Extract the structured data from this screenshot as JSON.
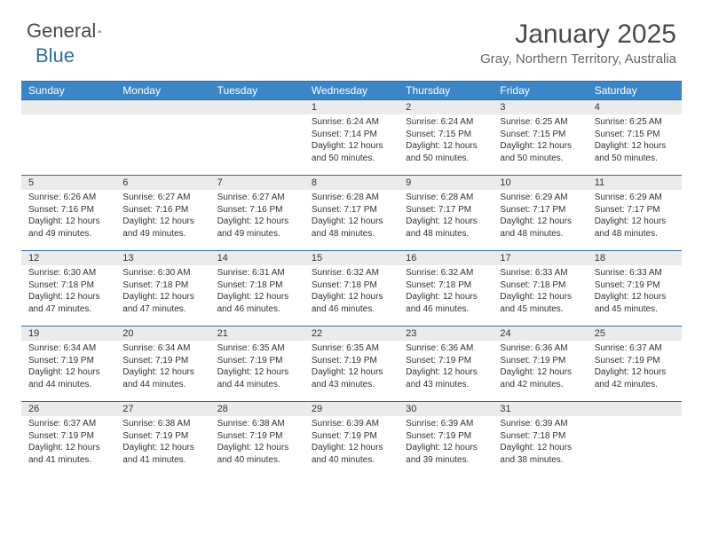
{
  "logo": {
    "text_general": "General",
    "text_blue": "Blue"
  },
  "title": "January 2025",
  "location": "Gray, Northern Territory, Australia",
  "day_names": [
    "Sunday",
    "Monday",
    "Tuesday",
    "Wednesday",
    "Thursday",
    "Friday",
    "Saturday"
  ],
  "colors": {
    "header_bg": "#3b86c7",
    "header_text": "#ffffff",
    "border": "#2e6da4",
    "daynum_bg": "#ebebeb",
    "text": "#333333",
    "logo_gray": "#4a4a4a",
    "logo_blue": "#2e6da4"
  },
  "weeks": [
    [
      null,
      null,
      null,
      {
        "n": "1",
        "sr": "Sunrise: 6:24 AM",
        "ss": "Sunset: 7:14 PM",
        "d1": "Daylight: 12 hours",
        "d2": "and 50 minutes."
      },
      {
        "n": "2",
        "sr": "Sunrise: 6:24 AM",
        "ss": "Sunset: 7:15 PM",
        "d1": "Daylight: 12 hours",
        "d2": "and 50 minutes."
      },
      {
        "n": "3",
        "sr": "Sunrise: 6:25 AM",
        "ss": "Sunset: 7:15 PM",
        "d1": "Daylight: 12 hours",
        "d2": "and 50 minutes."
      },
      {
        "n": "4",
        "sr": "Sunrise: 6:25 AM",
        "ss": "Sunset: 7:15 PM",
        "d1": "Daylight: 12 hours",
        "d2": "and 50 minutes."
      }
    ],
    [
      {
        "n": "5",
        "sr": "Sunrise: 6:26 AM",
        "ss": "Sunset: 7:16 PM",
        "d1": "Daylight: 12 hours",
        "d2": "and 49 minutes."
      },
      {
        "n": "6",
        "sr": "Sunrise: 6:27 AM",
        "ss": "Sunset: 7:16 PM",
        "d1": "Daylight: 12 hours",
        "d2": "and 49 minutes."
      },
      {
        "n": "7",
        "sr": "Sunrise: 6:27 AM",
        "ss": "Sunset: 7:16 PM",
        "d1": "Daylight: 12 hours",
        "d2": "and 49 minutes."
      },
      {
        "n": "8",
        "sr": "Sunrise: 6:28 AM",
        "ss": "Sunset: 7:17 PM",
        "d1": "Daylight: 12 hours",
        "d2": "and 48 minutes."
      },
      {
        "n": "9",
        "sr": "Sunrise: 6:28 AM",
        "ss": "Sunset: 7:17 PM",
        "d1": "Daylight: 12 hours",
        "d2": "and 48 minutes."
      },
      {
        "n": "10",
        "sr": "Sunrise: 6:29 AM",
        "ss": "Sunset: 7:17 PM",
        "d1": "Daylight: 12 hours",
        "d2": "and 48 minutes."
      },
      {
        "n": "11",
        "sr": "Sunrise: 6:29 AM",
        "ss": "Sunset: 7:17 PM",
        "d1": "Daylight: 12 hours",
        "d2": "and 48 minutes."
      }
    ],
    [
      {
        "n": "12",
        "sr": "Sunrise: 6:30 AM",
        "ss": "Sunset: 7:18 PM",
        "d1": "Daylight: 12 hours",
        "d2": "and 47 minutes."
      },
      {
        "n": "13",
        "sr": "Sunrise: 6:30 AM",
        "ss": "Sunset: 7:18 PM",
        "d1": "Daylight: 12 hours",
        "d2": "and 47 minutes."
      },
      {
        "n": "14",
        "sr": "Sunrise: 6:31 AM",
        "ss": "Sunset: 7:18 PM",
        "d1": "Daylight: 12 hours",
        "d2": "and 46 minutes."
      },
      {
        "n": "15",
        "sr": "Sunrise: 6:32 AM",
        "ss": "Sunset: 7:18 PM",
        "d1": "Daylight: 12 hours",
        "d2": "and 46 minutes."
      },
      {
        "n": "16",
        "sr": "Sunrise: 6:32 AM",
        "ss": "Sunset: 7:18 PM",
        "d1": "Daylight: 12 hours",
        "d2": "and 46 minutes."
      },
      {
        "n": "17",
        "sr": "Sunrise: 6:33 AM",
        "ss": "Sunset: 7:18 PM",
        "d1": "Daylight: 12 hours",
        "d2": "and 45 minutes."
      },
      {
        "n": "18",
        "sr": "Sunrise: 6:33 AM",
        "ss": "Sunset: 7:19 PM",
        "d1": "Daylight: 12 hours",
        "d2": "and 45 minutes."
      }
    ],
    [
      {
        "n": "19",
        "sr": "Sunrise: 6:34 AM",
        "ss": "Sunset: 7:19 PM",
        "d1": "Daylight: 12 hours",
        "d2": "and 44 minutes."
      },
      {
        "n": "20",
        "sr": "Sunrise: 6:34 AM",
        "ss": "Sunset: 7:19 PM",
        "d1": "Daylight: 12 hours",
        "d2": "and 44 minutes."
      },
      {
        "n": "21",
        "sr": "Sunrise: 6:35 AM",
        "ss": "Sunset: 7:19 PM",
        "d1": "Daylight: 12 hours",
        "d2": "and 44 minutes."
      },
      {
        "n": "22",
        "sr": "Sunrise: 6:35 AM",
        "ss": "Sunset: 7:19 PM",
        "d1": "Daylight: 12 hours",
        "d2": "and 43 minutes."
      },
      {
        "n": "23",
        "sr": "Sunrise: 6:36 AM",
        "ss": "Sunset: 7:19 PM",
        "d1": "Daylight: 12 hours",
        "d2": "and 43 minutes."
      },
      {
        "n": "24",
        "sr": "Sunrise: 6:36 AM",
        "ss": "Sunset: 7:19 PM",
        "d1": "Daylight: 12 hours",
        "d2": "and 42 minutes."
      },
      {
        "n": "25",
        "sr": "Sunrise: 6:37 AM",
        "ss": "Sunset: 7:19 PM",
        "d1": "Daylight: 12 hours",
        "d2": "and 42 minutes."
      }
    ],
    [
      {
        "n": "26",
        "sr": "Sunrise: 6:37 AM",
        "ss": "Sunset: 7:19 PM",
        "d1": "Daylight: 12 hours",
        "d2": "and 41 minutes."
      },
      {
        "n": "27",
        "sr": "Sunrise: 6:38 AM",
        "ss": "Sunset: 7:19 PM",
        "d1": "Daylight: 12 hours",
        "d2": "and 41 minutes."
      },
      {
        "n": "28",
        "sr": "Sunrise: 6:38 AM",
        "ss": "Sunset: 7:19 PM",
        "d1": "Daylight: 12 hours",
        "d2": "and 40 minutes."
      },
      {
        "n": "29",
        "sr": "Sunrise: 6:39 AM",
        "ss": "Sunset: 7:19 PM",
        "d1": "Daylight: 12 hours",
        "d2": "and 40 minutes."
      },
      {
        "n": "30",
        "sr": "Sunrise: 6:39 AM",
        "ss": "Sunset: 7:19 PM",
        "d1": "Daylight: 12 hours",
        "d2": "and 39 minutes."
      },
      {
        "n": "31",
        "sr": "Sunrise: 6:39 AM",
        "ss": "Sunset: 7:18 PM",
        "d1": "Daylight: 12 hours",
        "d2": "and 38 minutes."
      },
      null
    ]
  ]
}
